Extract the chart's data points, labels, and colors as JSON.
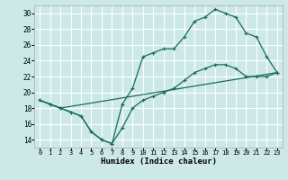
{
  "xlabel": "Humidex (Indice chaleur)",
  "bg_color": "#cce9e8",
  "grid_color": "#ffffff",
  "line_color": "#1a6b5a",
  "xlim": [
    -0.5,
    23.5
  ],
  "ylim": [
    13,
    31
  ],
  "xticks": [
    0,
    1,
    2,
    3,
    4,
    5,
    6,
    7,
    8,
    9,
    10,
    11,
    12,
    13,
    14,
    15,
    16,
    17,
    18,
    19,
    20,
    21,
    22,
    23
  ],
  "yticks": [
    14,
    16,
    18,
    20,
    22,
    24,
    26,
    28,
    30
  ],
  "line1_x": [
    0,
    1,
    2,
    3,
    4,
    5,
    6,
    7,
    8,
    9,
    10,
    11,
    12,
    13,
    14,
    15,
    16,
    17,
    18,
    19,
    20,
    21,
    22,
    23
  ],
  "line1_y": [
    19,
    18.5,
    18,
    17.5,
    17,
    15,
    14,
    13.5,
    18.5,
    20.5,
    24.5,
    25,
    25.5,
    25.5,
    27,
    29,
    29.5,
    30.5,
    30,
    29.5,
    27.5,
    27,
    24.5,
    22.5
  ],
  "line2_x": [
    0,
    1,
    2,
    3,
    4,
    5,
    6,
    7,
    8,
    9,
    10,
    11,
    12,
    13,
    14,
    15,
    16,
    17,
    18,
    19,
    20,
    21,
    22,
    23
  ],
  "line2_y": [
    19,
    18.5,
    18,
    17.5,
    17,
    15,
    14,
    13.5,
    15.5,
    18,
    19,
    19.5,
    20,
    20.5,
    21.5,
    22.5,
    23,
    23.5,
    23.5,
    23,
    22,
    22,
    22,
    22.5
  ],
  "line3_x": [
    0,
    1,
    2,
    23
  ],
  "line3_y": [
    19,
    18.5,
    18,
    22.5
  ]
}
